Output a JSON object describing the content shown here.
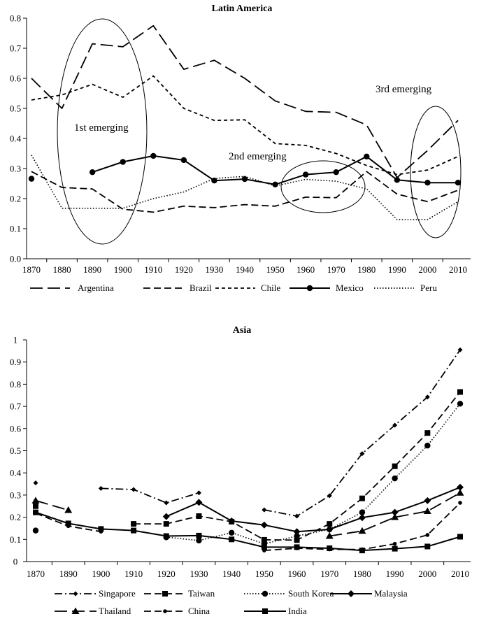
{
  "chart_data": [
    {
      "type": "line",
      "title": "Latin America",
      "x": [
        1870,
        1880,
        1890,
        1900,
        1910,
        1920,
        1930,
        1940,
        1950,
        1960,
        1970,
        1980,
        1990,
        2000,
        2010
      ],
      "x_tick_labels": [
        "1870",
        "1880",
        "1890",
        "1900",
        "1910",
        "1920",
        "1930",
        "1940",
        "1950",
        "1960",
        "1970",
        "1980",
        "1990",
        "2000",
        "2010"
      ],
      "ylim": [
        0,
        0.8
      ],
      "y_ticks": [
        0,
        0.1,
        0.2,
        0.3,
        0.4,
        0.5,
        0.6,
        0.7,
        0.8
      ],
      "y_tick_labels": [
        "0.0",
        "0.1",
        "0.2",
        "0.3",
        "0.4",
        "0.5",
        "0.6",
        "0.7",
        "0.8"
      ],
      "xlabel": "",
      "ylabel": "",
      "grid": false,
      "legend_position": "bottom",
      "series": [
        {
          "name": "Argentina",
          "style": "longdash",
          "marker": "none",
          "values": [
            0.6,
            0.5,
            0.715,
            0.705,
            0.775,
            0.63,
            0.66,
            0.6,
            0.525,
            0.49,
            0.487,
            0.445,
            0.27,
            0.36,
            0.46
          ]
        },
        {
          "name": "Brazil",
          "style": "dash",
          "marker": "none",
          "values": [
            0.29,
            0.237,
            0.232,
            0.165,
            0.155,
            0.175,
            0.17,
            0.18,
            0.175,
            0.205,
            0.203,
            0.29,
            0.215,
            0.19,
            0.228
          ]
        },
        {
          "name": "Chile",
          "style": "shortdash",
          "marker": "none",
          "values": [
            0.528,
            0.545,
            0.58,
            0.537,
            0.608,
            0.5,
            0.46,
            0.462,
            0.383,
            0.377,
            0.35,
            0.31,
            0.28,
            0.295,
            0.34
          ]
        },
        {
          "name": "Mexico",
          "style": "solid",
          "marker": "circle",
          "values": [
            0.266,
            null,
            0.288,
            0.322,
            0.342,
            0.328,
            0.26,
            0.265,
            0.247,
            0.28,
            0.288,
            0.34,
            0.262,
            0.253,
            0.253
          ]
        },
        {
          "name": "Peru",
          "style": "dot",
          "marker": "none",
          "values": [
            0.345,
            0.168,
            0.168,
            0.168,
            0.2,
            0.222,
            0.267,
            0.274,
            0.242,
            0.264,
            0.258,
            0.232,
            0.13,
            0.13,
            0.19
          ]
        }
      ],
      "annotations": [
        {
          "text": "1st emerging",
          "x_range": [
            1873,
            1913
          ],
          "y_range": [
            0.05,
            0.795
          ]
        },
        {
          "text": "2nd emerging",
          "x_range": [
            1950,
            1982
          ],
          "y_range": [
            0.18,
            0.355
          ]
        },
        {
          "text": "3rd emerging",
          "x_range": [
            1992,
            2010
          ],
          "y_range": [
            0.07,
            0.51
          ]
        }
      ]
    },
    {
      "type": "line",
      "title": "Asia",
      "x": [
        1870,
        1890,
        1900,
        1910,
        1920,
        1930,
        1940,
        1950,
        1960,
        1970,
        1980,
        1990,
        2000,
        2010
      ],
      "x_tick_labels": [
        "1870",
        "1890",
        "1900",
        "1910",
        "1920",
        "1930",
        "1940",
        "1950",
        "1960",
        "1970",
        "1980",
        "1990",
        "2000",
        "2010"
      ],
      "ylim": [
        0,
        1
      ],
      "y_ticks": [
        0,
        0.1,
        0.2,
        0.3,
        0.4,
        0.5,
        0.6,
        0.7,
        0.8,
        0.9,
        1
      ],
      "y_tick_labels": [
        "0",
        "0.1",
        "0.2",
        "0.3",
        "0.4",
        "0.5",
        "0.6",
        "0.7",
        "0.8",
        "0.9",
        "1"
      ],
      "xlabel": "",
      "ylabel": "",
      "grid": false,
      "legend_position": "bottom",
      "series": [
        {
          "name": "Singapore",
          "style": "dashdot",
          "marker": "diamond-small",
          "values": [
            0.355,
            null,
            0.33,
            0.325,
            0.265,
            0.31,
            null,
            0.233,
            0.205,
            0.297,
            0.487,
            0.615,
            0.742,
            0.955
          ]
        },
        {
          "name": "Taiwan",
          "style": "dash",
          "marker": "square",
          "values": [
            0.25,
            null,
            null,
            0.17,
            0.17,
            0.205,
            0.18,
            0.098,
            0.097,
            0.17,
            0.285,
            0.43,
            0.58,
            0.765
          ]
        },
        {
          "name": "South Korea",
          "style": "dot",
          "marker": "circle",
          "values": [
            0.14,
            null,
            null,
            null,
            0.11,
            0.095,
            0.13,
            0.08,
            0.115,
            0.145,
            0.222,
            0.375,
            0.523,
            0.712
          ]
        },
        {
          "name": "Malaysia",
          "style": "solid",
          "marker": "diamond",
          "values": [
            null,
            null,
            null,
            null,
            0.203,
            0.267,
            0.183,
            0.165,
            0.135,
            0.145,
            0.198,
            0.222,
            0.275,
            0.335
          ]
        },
        {
          "name": "Thailand",
          "style": "longdash",
          "marker": "triangle",
          "values": [
            0.275,
            0.232,
            null,
            null,
            null,
            null,
            null,
            null,
            null,
            0.115,
            0.138,
            0.2,
            0.227,
            0.31
          ]
        },
        {
          "name": "China",
          "style": "dash",
          "marker": "circle-small",
          "values": [
            0.218,
            0.16,
            0.135,
            null,
            0.105,
            null,
            null,
            0.05,
            0.06,
            0.055,
            0.055,
            0.08,
            0.12,
            0.265
          ]
        },
        {
          "name": "India",
          "style": "solid",
          "marker": "square",
          "values": [
            0.222,
            0.172,
            0.147,
            0.14,
            0.115,
            0.117,
            0.1,
            0.065,
            0.065,
            0.06,
            0.05,
            0.058,
            0.068,
            0.112
          ]
        }
      ]
    }
  ]
}
